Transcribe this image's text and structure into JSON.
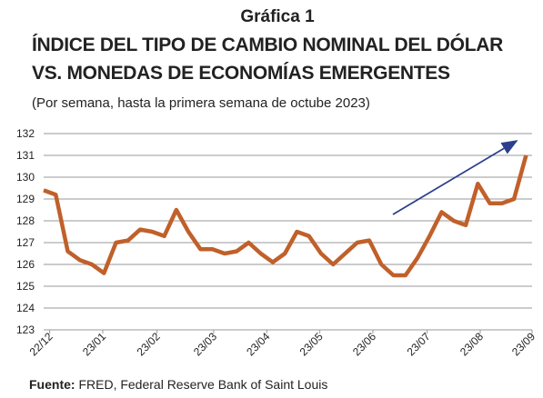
{
  "chart_data": {
    "type": "line",
    "title": "Gráfica 1",
    "subtitle_lines": [
      "ÍNDICE DEL TIPO DE CAMBIO NOMINAL DEL DÓLAR",
      "VS. MONEDAS DE ECONOMÍAS EMERGENTES"
    ],
    "subtitle": "(Por semana, hasta la primera semana de octube 2023)",
    "x": [
      0,
      1,
      2,
      3,
      4,
      5,
      6,
      7,
      8,
      9,
      10,
      11,
      12,
      13,
      14,
      15,
      16,
      17,
      18,
      19,
      20,
      21,
      22,
      23,
      24,
      25,
      26,
      27,
      28,
      29,
      30,
      31,
      32,
      33,
      34,
      35,
      36,
      37,
      38,
      39,
      40
    ],
    "series": [
      {
        "name": "Índice",
        "color": "#c0602a",
        "values": [
          129.4,
          129.2,
          126.6,
          126.2,
          126.0,
          125.6,
          127.0,
          127.1,
          127.6,
          127.5,
          127.3,
          128.5,
          127.5,
          126.7,
          126.7,
          126.5,
          126.6,
          127.0,
          126.5,
          126.1,
          126.5,
          127.5,
          127.3,
          126.5,
          126.0,
          126.5,
          127.0,
          127.1,
          126.0,
          125.5,
          125.5,
          126.3,
          127.3,
          128.4,
          128.0,
          127.8,
          129.7,
          128.8,
          128.8,
          129.0,
          131.0
        ]
      }
    ],
    "xlim": [
      0,
      40.5
    ],
    "xticks": [
      {
        "value": 0.5,
        "label": "22/12"
      },
      {
        "value": 4.9,
        "label": "23/01"
      },
      {
        "value": 9.4,
        "label": "23/02"
      },
      {
        "value": 14.1,
        "label": "23/03"
      },
      {
        "value": 18.5,
        "label": "23/04"
      },
      {
        "value": 22.9,
        "label": "23/05"
      },
      {
        "value": 27.3,
        "label": "23/06"
      },
      {
        "value": 31.8,
        "label": "23/07"
      },
      {
        "value": 36.2,
        "label": "23/08"
      },
      {
        "value": 40.5,
        "label": "23/09"
      }
    ],
    "ylim": [
      123,
      132
    ],
    "yticks": [
      123,
      124,
      125,
      126,
      127,
      128,
      129,
      130,
      131,
      132
    ],
    "grid": true,
    "source_label": "Fuente:",
    "source": "FRED, Federal Reserve Bank of Saint Louis"
  }
}
